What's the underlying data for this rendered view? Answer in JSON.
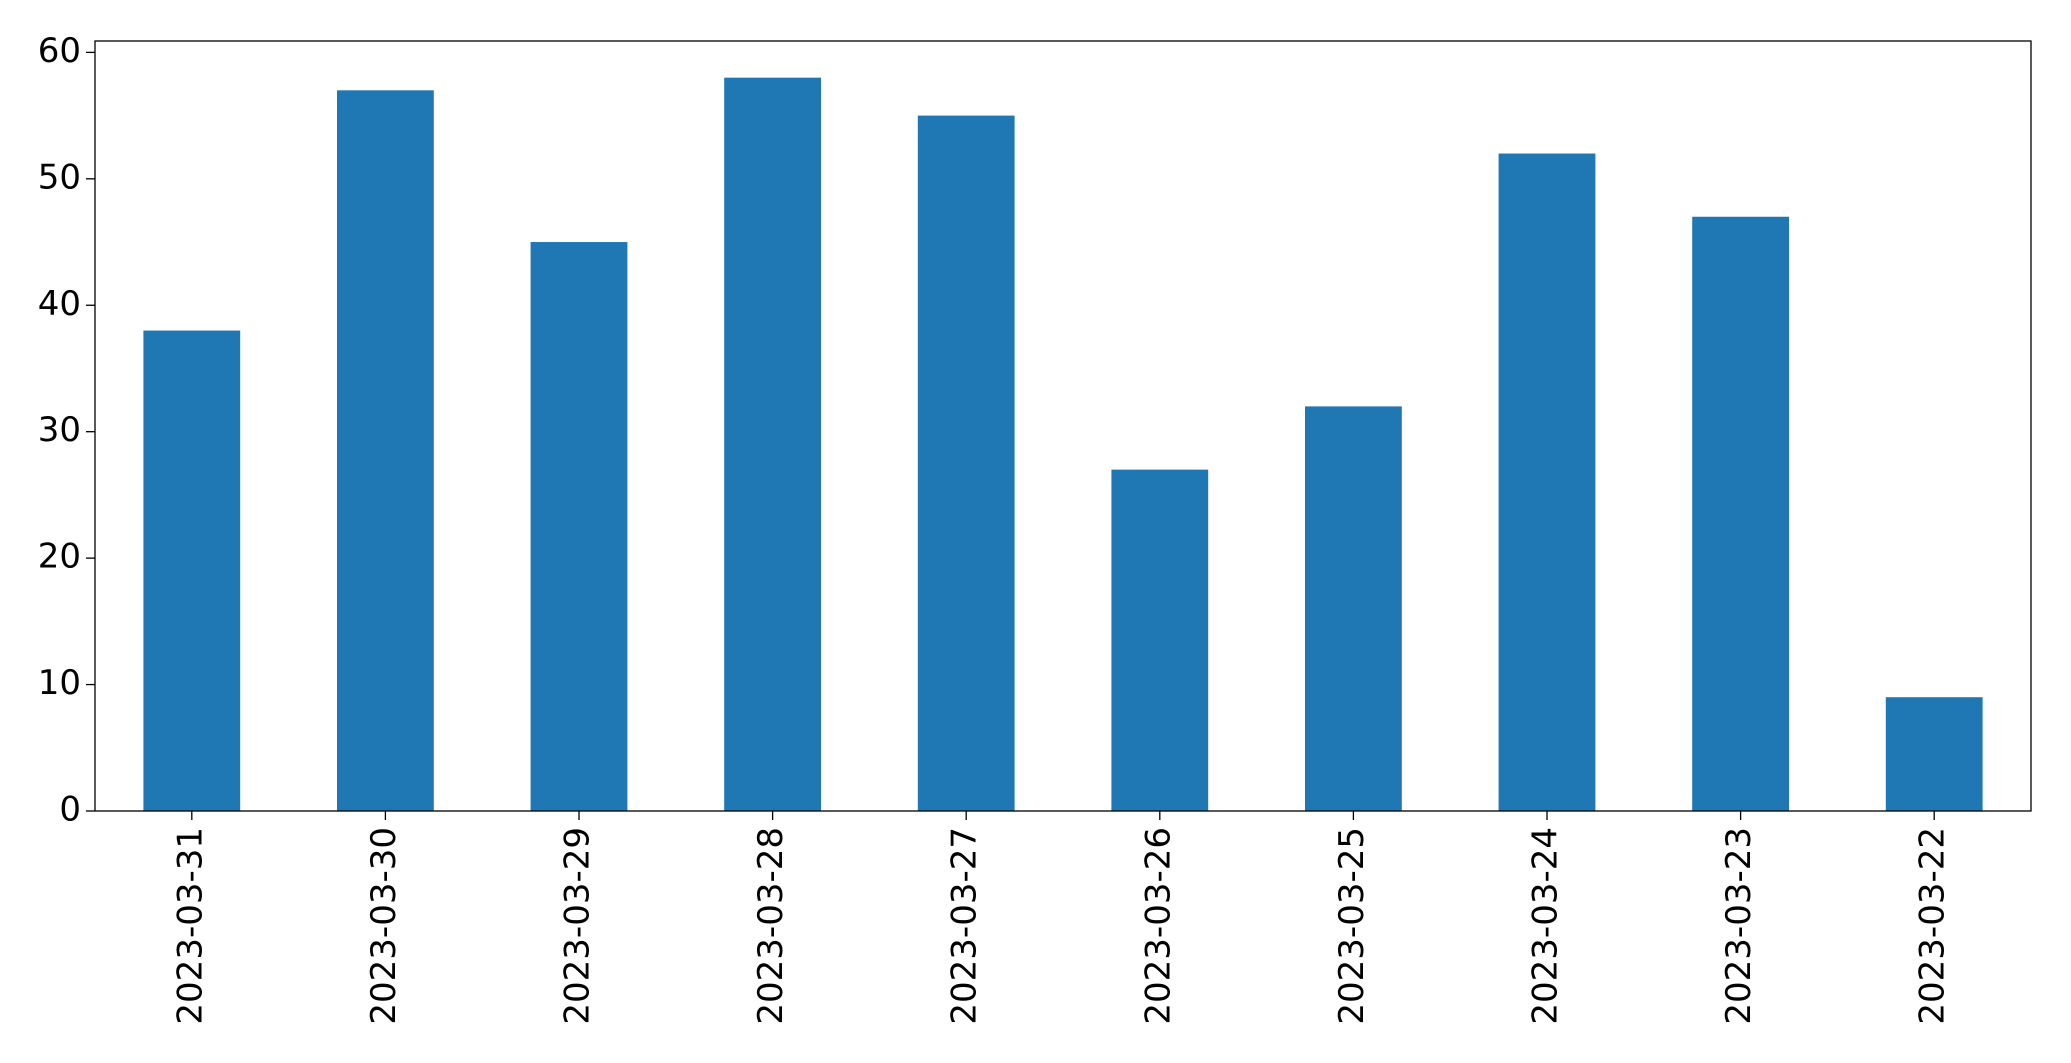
{
  "chart_data": {
    "type": "bar",
    "categories": [
      "2023-03-31",
      "2023-03-30",
      "2023-03-29",
      "2023-03-28",
      "2023-03-27",
      "2023-03-26",
      "2023-03-25",
      "2023-03-24",
      "2023-03-23",
      "2023-03-22"
    ],
    "values": [
      38,
      57,
      45,
      58,
      55,
      27,
      32,
      52,
      47,
      9
    ],
    "color": "#1f77b4",
    "ylim": [
      0,
      60.9
    ],
    "yticks": [
      0,
      10,
      20,
      30,
      40,
      50,
      60
    ],
    "grid": false
  }
}
